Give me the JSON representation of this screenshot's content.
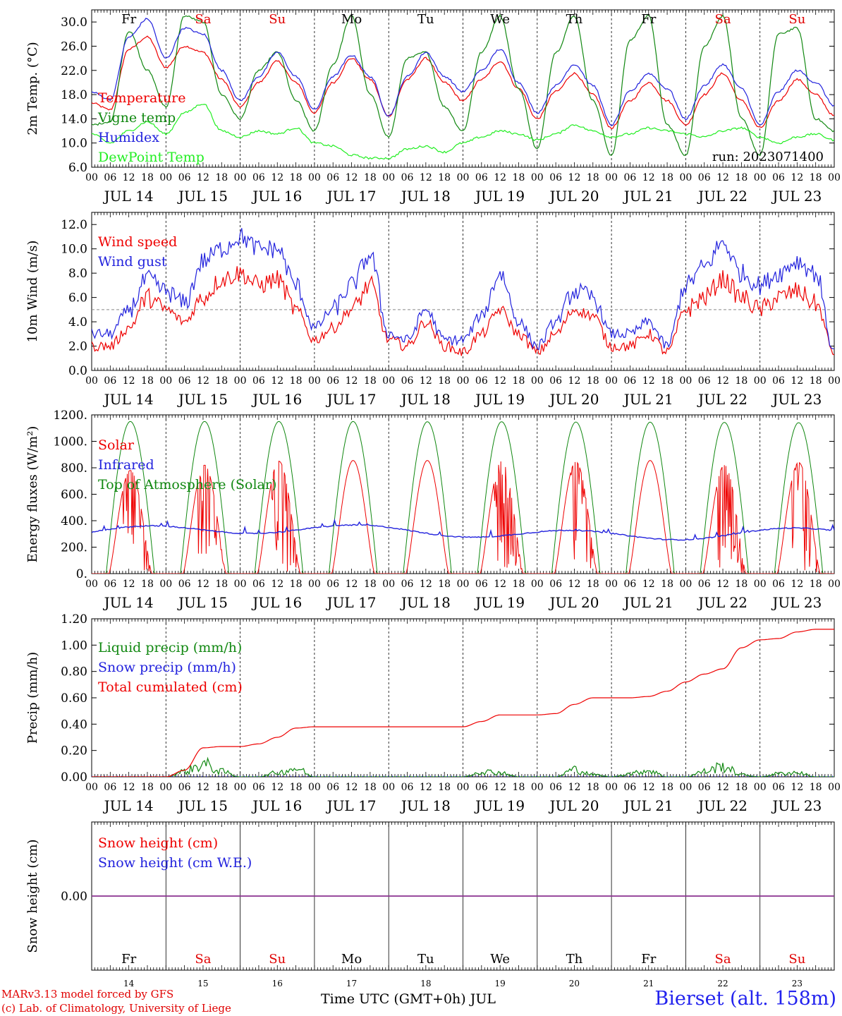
{
  "footer": {
    "credit_line1": "MARv3.13 model forced by GFS",
    "credit_line2": "(c) Lab. of Climatology, University of Liege",
    "x_axis_title": "Time UTC (GMT+0h) JUL",
    "station": "Bierset (alt. 158m)"
  },
  "chart_data": [
    {
      "type": "line",
      "id": "temp",
      "ylabel": "2m Temp. (°C)",
      "ylim": [
        6,
        32
      ],
      "yticks": [
        "6.0",
        "10.0",
        "14.0",
        "18.0",
        "22.0",
        "26.0",
        "30.0"
      ],
      "annotation": "run: 2023071400",
      "weekday_labels": [
        {
          "text": "Fr",
          "color": "#000000"
        },
        {
          "text": "Sa",
          "color": "#e00000"
        },
        {
          "text": "Su",
          "color": "#e00000"
        },
        {
          "text": "Mo",
          "color": "#000000"
        },
        {
          "text": "Tu",
          "color": "#000000"
        },
        {
          "text": "We",
          "color": "#000000"
        },
        {
          "text": "Th",
          "color": "#000000"
        },
        {
          "text": "Fr",
          "color": "#000000"
        },
        {
          "text": "Sa",
          "color": "#e00000"
        },
        {
          "text": "Su",
          "color": "#e00000"
        }
      ],
      "x_hours": [
        0,
        6,
        12,
        18,
        24,
        30,
        36,
        42,
        48,
        54,
        60,
        66,
        72,
        78,
        84,
        90,
        96,
        102,
        108,
        114,
        120,
        126,
        132,
        138,
        144,
        150,
        156,
        162,
        168,
        174,
        180,
        186,
        192,
        198,
        204,
        210,
        216,
        222,
        228,
        234,
        240
      ],
      "series": [
        {
          "name": "Temperature",
          "color": "#ee0000",
          "values": [
            16.6,
            15.5,
            25.5,
            27.5,
            22.5,
            26,
            25,
            20.5,
            16,
            20,
            23.5,
            20,
            15,
            20,
            24,
            20.5,
            14.5,
            20.5,
            24,
            20,
            17,
            20.5,
            23.5,
            19,
            14,
            18.5,
            21.5,
            18,
            12.5,
            17,
            20,
            17,
            13,
            18,
            21.5,
            17,
            12.5,
            17,
            20.5,
            18,
            14.5
          ]
        },
        {
          "name": "Vigne temp",
          "color": "#118811",
          "values": [
            13,
            13.5,
            28.5,
            22,
            16,
            31,
            30,
            18,
            14,
            22,
            25,
            17,
            12,
            23,
            31,
            18,
            11,
            24,
            25,
            16,
            12,
            25,
            31,
            19,
            9,
            25,
            31,
            17,
            8,
            27,
            31,
            13,
            8,
            26,
            31,
            14,
            8,
            28,
            29,
            14,
            12
          ]
        },
        {
          "name": "Humidex",
          "color": "#2222dd",
          "values": [
            18.4,
            17.2,
            27.5,
            30.5,
            24,
            29,
            28,
            22,
            17,
            21,
            25,
            21,
            15.5,
            21,
            24.5,
            21,
            14.5,
            21,
            25,
            21,
            18.5,
            22,
            25.5,
            20,
            15,
            19.5,
            23,
            19.5,
            13,
            18.5,
            21.5,
            19,
            14,
            19.5,
            23,
            19,
            13,
            18.5,
            22,
            20,
            16.2
          ]
        },
        {
          "name": "DewPoint Temp",
          "color": "#22ee22",
          "values": [
            11.5,
            10,
            12,
            13.5,
            11.5,
            15,
            16.5,
            12,
            11,
            12,
            11.5,
            12.5,
            10,
            9.5,
            8,
            7.5,
            7.5,
            9,
            9.5,
            8.5,
            10,
            11,
            12,
            11.5,
            10.5,
            11.5,
            13,
            12,
            11,
            11.5,
            12.5,
            12,
            11.5,
            11,
            12,
            12.5,
            11,
            10,
            11,
            11.5,
            10.5
          ]
        }
      ]
    },
    {
      "type": "line",
      "id": "wind",
      "ylabel": "10m Wind (m/s)",
      "ylim": [
        0,
        13
      ],
      "yticks": [
        "0.0",
        "2.0",
        "4.0",
        "6.0",
        "8.0",
        "10.0",
        "12.0"
      ],
      "reference_line": 5,
      "x_hours": [
        0,
        6,
        12,
        18,
        24,
        30,
        36,
        42,
        48,
        54,
        60,
        66,
        72,
        78,
        84,
        90,
        96,
        102,
        108,
        114,
        120,
        126,
        132,
        138,
        144,
        150,
        156,
        162,
        168,
        174,
        180,
        186,
        192,
        198,
        204,
        210,
        216,
        222,
        228,
        234,
        240
      ],
      "series": [
        {
          "name": "Wind speed",
          "color": "#ee0000",
          "values": [
            2,
            2,
            3.5,
            6,
            5,
            4,
            6,
            7.5,
            8,
            7,
            7.5,
            5,
            2.5,
            3.5,
            5,
            7,
            2.5,
            2,
            4,
            2,
            1.5,
            3,
            5,
            3,
            1.5,
            3,
            5,
            4.5,
            2,
            2,
            3,
            1.5,
            5,
            6,
            7.5,
            6,
            5,
            6,
            6.5,
            5.5,
            1.5
          ]
        },
        {
          "name": "Wind gust",
          "color": "#2222dd",
          "values": [
            3,
            3,
            5,
            7.5,
            6.5,
            5.5,
            9,
            10,
            11,
            10,
            10,
            7,
            3.5,
            5,
            7,
            9.5,
            3,
            2.5,
            5,
            2.5,
            2.5,
            4.5,
            8,
            4,
            2,
            4,
            6.5,
            6,
            3,
            3,
            4,
            2,
            7,
            8.5,
            10.5,
            8,
            7,
            8,
            9,
            8,
            1.5
          ]
        }
      ]
    },
    {
      "type": "line",
      "id": "energy",
      "ylabel": "Energy fluxes (W/m²)",
      "ylim": [
        0,
        1200
      ],
      "yticks": [
        "0.",
        "200.",
        "400.",
        "600.",
        "800.",
        "1000.",
        "1200."
      ],
      "series": [
        {
          "name": "Solar",
          "color": "#ee0000",
          "daily_peak": [
            780,
            820,
            850,
            855,
            855,
            850,
            845,
            855,
            820,
            840
          ]
        },
        {
          "name": "Infrared",
          "color": "#2222dd",
          "level": 340
        },
        {
          "name": "Top of Atmosphere (Solar)",
          "color": "#118811",
          "daily_peak": [
            1150,
            1150,
            1150,
            1150,
            1148,
            1148,
            1146,
            1145,
            1143,
            1141
          ]
        }
      ]
    },
    {
      "type": "line",
      "id": "precip",
      "ylabel": "Precip (mm/h)",
      "ylim": [
        0,
        1.2
      ],
      "yticks": [
        "0.00",
        "0.20",
        "0.40",
        "0.60",
        "0.80",
        "1.00",
        "1.20"
      ],
      "x_hours": [
        0,
        6,
        12,
        18,
        24,
        30,
        36,
        42,
        48,
        54,
        60,
        66,
        72,
        78,
        84,
        90,
        96,
        102,
        108,
        114,
        120,
        126,
        132,
        138,
        144,
        150,
        156,
        162,
        168,
        174,
        180,
        186,
        192,
        198,
        204,
        210,
        216,
        222,
        228,
        234,
        240
      ],
      "series": [
        {
          "name": "Liquid precip (mm/h)",
          "color": "#118811",
          "values": [
            0,
            0,
            0,
            0,
            0,
            0.05,
            0.12,
            0.05,
            0,
            0,
            0.04,
            0.08,
            0,
            0,
            0,
            0,
            0,
            0,
            0,
            0,
            0,
            0.05,
            0.04,
            0,
            0,
            0,
            0.07,
            0.02,
            0,
            0.03,
            0.06,
            0,
            0,
            0.05,
            0.1,
            0.02,
            0,
            0.03,
            0.04,
            0,
            0
          ]
        },
        {
          "name": "Snow precip (mm/h)",
          "color": "#2222dd",
          "values": [
            0,
            0,
            0,
            0,
            0,
            0,
            0,
            0,
            0,
            0,
            0,
            0,
            0,
            0,
            0,
            0,
            0,
            0,
            0,
            0,
            0,
            0,
            0,
            0,
            0,
            0,
            0,
            0,
            0,
            0,
            0,
            0,
            0,
            0,
            0,
            0,
            0,
            0,
            0,
            0,
            0
          ]
        },
        {
          "name": "Total cumulated (cm)",
          "color": "#ee0000",
          "values": [
            0,
            0,
            0,
            0,
            0,
            0.05,
            0.22,
            0.23,
            0.23,
            0.25,
            0.3,
            0.37,
            0.38,
            0.38,
            0.38,
            0.38,
            0.38,
            0.38,
            0.38,
            0.38,
            0.38,
            0.42,
            0.47,
            0.47,
            0.47,
            0.48,
            0.55,
            0.6,
            0.6,
            0.6,
            0.61,
            0.65,
            0.72,
            0.78,
            0.82,
            0.98,
            1.04,
            1.05,
            1.1,
            1.12,
            1.12
          ]
        }
      ]
    },
    {
      "type": "line",
      "id": "snow",
      "ylabel": "Snow height (cm)",
      "yticks": [
        "0.00"
      ],
      "series": [
        {
          "name": "Snow height (cm)",
          "color": "#ee0000",
          "values": [
            0,
            0
          ]
        },
        {
          "name": "Snow height (cm W.E.)",
          "color": "#2222dd",
          "values": [
            0,
            0
          ]
        }
      ],
      "bottom_weekdays": [
        {
          "text": "Fr",
          "color": "#000000"
        },
        {
          "text": "Sa",
          "color": "#e00000"
        },
        {
          "text": "Su",
          "color": "#e00000"
        },
        {
          "text": "Mo",
          "color": "#000000"
        },
        {
          "text": "Tu",
          "color": "#000000"
        },
        {
          "text": "We",
          "color": "#000000"
        },
        {
          "text": "Th",
          "color": "#000000"
        },
        {
          "text": "Fr",
          "color": "#000000"
        },
        {
          "text": "Sa",
          "color": "#e00000"
        },
        {
          "text": "Su",
          "color": "#e00000"
        }
      ],
      "bottom_days": [
        "14",
        "15",
        "16",
        "17",
        "18",
        "19",
        "20",
        "21",
        "22",
        "23"
      ]
    }
  ],
  "x_axis": {
    "hour_labels": [
      "00",
      "06",
      "12",
      "18"
    ],
    "final_hour_label": "00",
    "date_labels": [
      "JUL 14",
      "JUL 15",
      "JUL 16",
      "JUL 17",
      "JUL 18",
      "JUL 19",
      "JUL 20",
      "JUL 21",
      "JUL 22",
      "JUL 23"
    ]
  }
}
